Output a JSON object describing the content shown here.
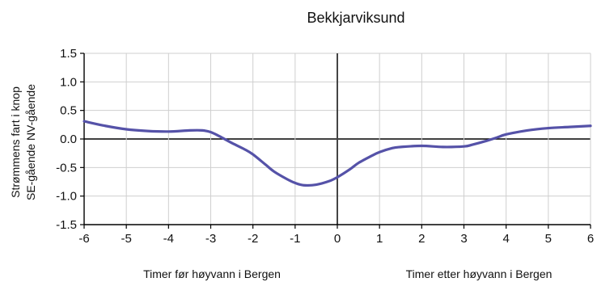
{
  "chart_data": {
    "type": "line",
    "title": "Bekkjarviksund",
    "ylabel_lines": [
      "Strømmens fart i knop",
      "SE-gående  NV-gående"
    ],
    "xlabel_left": "Timer før høyvann i Bergen",
    "xlabel_right": "Timer etter høyvann i Bergen",
    "xlim": [
      -6,
      6
    ],
    "ylim": [
      -1.5,
      1.5
    ],
    "x_ticks": [
      "-6",
      "-5",
      "-4",
      "-3",
      "-2",
      "-1",
      "0",
      "1",
      "2",
      "3",
      "4",
      "5",
      "6"
    ],
    "y_ticks": [
      "1.5",
      "1.0",
      "0.5",
      "0.0",
      "-0.5",
      "-1.0",
      "-1.5"
    ],
    "grid": true,
    "line_color": "#5552a8",
    "series": [
      {
        "x": [
          -6,
          -5.5,
          -5,
          -4.5,
          -4,
          -3.5,
          -3.2,
          -3,
          -2.8,
          -2.5,
          -2.2,
          -2,
          -1.7,
          -1.5,
          -1.2,
          -1,
          -0.8,
          -0.5,
          -0.2,
          0,
          0.3,
          0.5,
          0.8,
          1,
          1.3,
          1.5,
          2,
          2.5,
          3,
          3.2,
          3.5,
          3.8,
          4,
          4.5,
          5,
          5.5,
          6
        ],
        "y": [
          0.31,
          0.23,
          0.17,
          0.14,
          0.13,
          0.15,
          0.15,
          0.12,
          0.05,
          -0.07,
          -0.18,
          -0.27,
          -0.45,
          -0.57,
          -0.7,
          -0.77,
          -0.81,
          -0.8,
          -0.74,
          -0.67,
          -0.53,
          -0.42,
          -0.3,
          -0.23,
          -0.16,
          -0.14,
          -0.12,
          -0.14,
          -0.13,
          -0.1,
          -0.04,
          0.03,
          0.08,
          0.15,
          0.19,
          0.21,
          0.23
        ]
      }
    ]
  }
}
